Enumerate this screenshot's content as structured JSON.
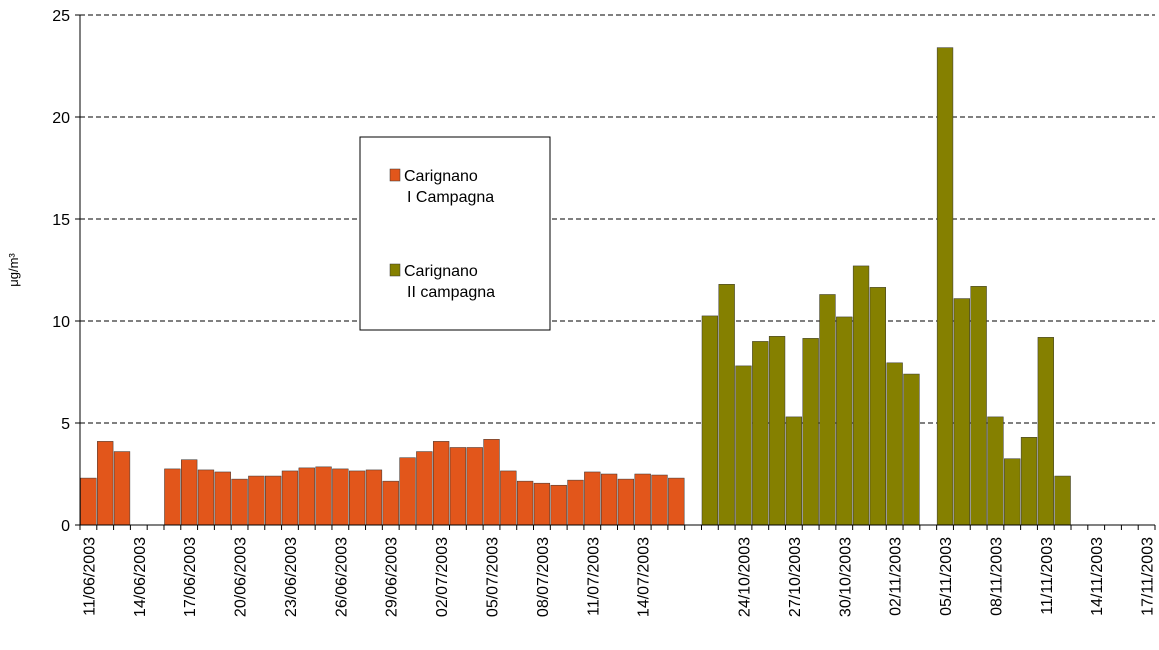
{
  "chart_data": {
    "type": "bar",
    "y_label": "μg/m³",
    "categories": [
      "11/06/2003",
      null,
      null,
      "14/06/2003",
      null,
      null,
      "17/06/2003",
      null,
      null,
      "20/06/2003",
      null,
      null,
      "23/06/2003",
      null,
      null,
      "26/06/2003",
      null,
      null,
      "29/06/2003",
      null,
      null,
      "02/07/2003",
      null,
      null,
      "05/07/2003",
      null,
      null,
      "08/07/2003",
      null,
      null,
      "11/07/2003",
      null,
      null,
      "14/07/2003",
      null,
      null,
      null,
      null,
      null,
      "24/10/2003",
      null,
      null,
      "27/10/2003",
      null,
      null,
      "30/10/2003",
      null,
      null,
      "02/11/2003",
      null,
      null,
      "05/11/2003",
      null,
      null,
      "08/11/2003",
      null,
      null,
      "11/11/2003",
      null,
      null,
      "14/11/2003",
      null,
      null,
      "17/11/2003"
    ],
    "series": [
      {
        "name": "Carignano\nI Campagna",
        "color": "#e2561b",
        "values": [
          2.3,
          4.1,
          3.6,
          null,
          null,
          2.75,
          3.2,
          2.7,
          2.6,
          2.25,
          2.4,
          2.4,
          2.65,
          2.8,
          2.85,
          2.75,
          2.65,
          2.7,
          2.15,
          3.3,
          3.6,
          4.1,
          3.8,
          3.8,
          4.2,
          2.65,
          2.15,
          2.05,
          1.95,
          2.2,
          2.6,
          2.5,
          2.25,
          2.5,
          2.45,
          2.3,
          null,
          null,
          null,
          null,
          null,
          null,
          null,
          null,
          null,
          null,
          null,
          null,
          null,
          null,
          null,
          null,
          null,
          null,
          null,
          null,
          null,
          null,
          null,
          null,
          null,
          null,
          null,
          null
        ]
      },
      {
        "name": "Carignano\nII campagna",
        "color": "#858000",
        "values": [
          null,
          null,
          null,
          null,
          null,
          null,
          null,
          null,
          null,
          null,
          null,
          null,
          null,
          null,
          null,
          null,
          null,
          null,
          null,
          null,
          null,
          null,
          null,
          null,
          null,
          null,
          null,
          null,
          null,
          null,
          null,
          null,
          null,
          null,
          null,
          null,
          null,
          10.25,
          11.8,
          7.8,
          9.0,
          9.25,
          5.3,
          9.15,
          11.3,
          10.2,
          12.7,
          11.65,
          7.95,
          7.4,
          null,
          23.4,
          11.1,
          11.7,
          5.3,
          3.25,
          4.3,
          9.2,
          2.4,
          null,
          null,
          null,
          null,
          null
        ]
      }
    ],
    "ylim": [
      0,
      25
    ],
    "yticks": [
      0,
      5,
      10,
      15,
      20,
      25
    ],
    "grid": true
  }
}
